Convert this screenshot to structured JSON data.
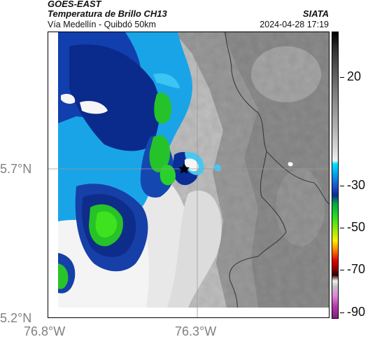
{
  "header": {
    "satellite": "GOES-EAST",
    "product": "Temperatura de Brillo CH13",
    "region": "Vía Medellín - Quibdó 50km",
    "agency": "SIATA",
    "datetime": "2024-04-28 17:19"
  },
  "axes": {
    "y_ticks": [
      "5.7°N",
      "5.2°N"
    ],
    "x_ticks": [
      "76.8°W",
      "76.3°W"
    ]
  },
  "colorbar": {
    "labels": [
      "20",
      "-30",
      "-50",
      "-70",
      "-90"
    ]
  },
  "marker": {
    "icon": "star-marker-icon"
  }
}
